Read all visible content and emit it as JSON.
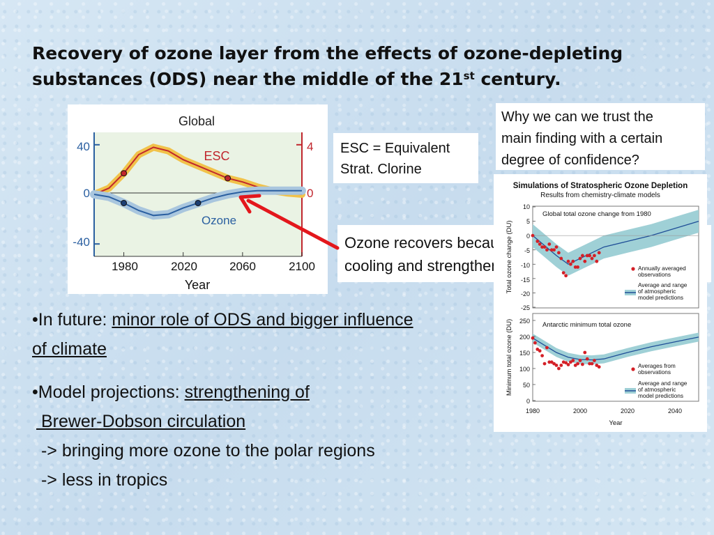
{
  "title": {
    "line1": "Recovery of ozone layer from the effects of ozone-depleting",
    "line2_pre": "substances (ODS) near the middle of the 21",
    "line2_sup": "st",
    "line2_post": " century."
  },
  "left_chart": {
    "panel_title": "Global",
    "y_left_ticks": [
      "40",
      "0",
      "-40"
    ],
    "y_right_ticks": [
      "4",
      "0"
    ],
    "x_ticks": [
      "1980",
      "2020",
      "2060",
      "2100"
    ],
    "x_label": "Year",
    "esc_label": "ESC",
    "ozone_label": "Ozone",
    "colors": {
      "esc": "#c0262d",
      "esc_band": "#f1c24a",
      "ozone": "#2a5fa0",
      "ozone_band": "#a9c6de",
      "bg": "#eaf3e4"
    }
  },
  "chart_data": [
    {
      "type": "line",
      "title": "Global",
      "xlabel": "Year",
      "xlim": [
        1960,
        2100
      ],
      "ylim": [
        -50,
        50
      ],
      "series": [
        {
          "name": "ESC",
          "x": [
            1960,
            1970,
            1980,
            1990,
            2000,
            2010,
            2020,
            2030,
            2040,
            2050,
            2060,
            2070,
            2080,
            2090,
            2100
          ],
          "y": [
            0,
            5,
            17,
            32,
            38,
            35,
            28,
            23,
            18,
            13,
            10,
            6,
            3,
            1,
            0
          ]
        },
        {
          "name": "Ozone",
          "x": [
            1960,
            1970,
            1980,
            1990,
            2000,
            2010,
            2020,
            2030,
            2040,
            2050,
            2060,
            2070,
            2080,
            2090,
            2100
          ],
          "y": [
            0,
            -2,
            -7,
            -13,
            -17,
            -16,
            -11,
            -7,
            -3,
            0,
            2,
            3,
            3,
            3,
            3
          ]
        }
      ]
    },
    {
      "type": "line",
      "title": "Global total ozone change from 1980",
      "xlabel": "Year",
      "ylabel": "Total ozone change (DU)",
      "xlim": [
        1980,
        2050
      ],
      "ylim": [
        -25,
        10
      ],
      "y_ticks": [
        10,
        5,
        0,
        -5,
        -10,
        -15,
        -20,
        -25
      ],
      "series": [
        {
          "name": "Average and range of atmospheric model predictions",
          "x": [
            1980,
            1990,
            1995,
            2000,
            2010,
            2020,
            2030,
            2040,
            2050
          ],
          "y": [
            0,
            -7,
            -10,
            -8,
            -4,
            -2,
            0,
            2.5,
            5
          ]
        },
        {
          "name": "Annually averaged observations",
          "x": [
            1980,
            1982,
            1983,
            1984,
            1985,
            1986,
            1987,
            1988,
            1989,
            1990,
            1991,
            1992,
            1993,
            1994,
            1995,
            1996,
            1997,
            1998,
            1999,
            2000,
            2001,
            2002,
            2003,
            2004,
            2005,
            2006,
            2007,
            2008
          ],
          "y": [
            0,
            -2,
            -3,
            -4,
            -4,
            -5,
            -3,
            -5,
            -5,
            -4,
            -6,
            -8,
            -13,
            -14,
            -9,
            -10,
            -9,
            -11,
            -11,
            -8,
            -7,
            -9,
            -7,
            -7,
            -8,
            -7,
            -9,
            -6
          ]
        }
      ]
    },
    {
      "type": "line",
      "title": "Antarctic minimum total ozone",
      "xlabel": "Year",
      "ylabel": "Minimum total ozone (DU)",
      "xlim": [
        1980,
        2050
      ],
      "ylim": [
        0,
        250
      ],
      "y_ticks": [
        250,
        200,
        150,
        100,
        50,
        0
      ],
      "x_ticks": [
        1980,
        2000,
        2020,
        2040
      ],
      "series": [
        {
          "name": "Average and range of atmospheric model predictions",
          "x": [
            1980,
            1990,
            1995,
            2000,
            2005,
            2010,
            2020,
            2030,
            2040,
            2050
          ],
          "y": [
            195,
            150,
            135,
            128,
            127,
            130,
            150,
            168,
            183,
            198
          ]
        },
        {
          "name": "Averages from observations",
          "x": [
            1980,
            1981,
            1982,
            1983,
            1984,
            1985,
            1986,
            1987,
            1988,
            1989,
            1990,
            1991,
            1992,
            1993,
            1994,
            1995,
            1996,
            1997,
            1998,
            1999,
            2000,
            2001,
            2002,
            2003,
            2004,
            2005,
            2006,
            2007,
            2008
          ],
          "y": [
            195,
            180,
            160,
            155,
            140,
            115,
            165,
            120,
            120,
            115,
            110,
            100,
            110,
            120,
            118,
            112,
            120,
            125,
            110,
            115,
            125,
            113,
            150,
            130,
            115,
            115,
            125,
            110,
            105
          ]
        }
      ]
    }
  ],
  "right_chart": {
    "header_title": "Simulations of Stratospheric Ozone Depletion",
    "header_subtitle": "Results from chemistry-climate models",
    "top_title": "Global total ozone change from 1980",
    "top_ylabel": "Total ozone change (DU)",
    "top_y_ticks": [
      "10",
      "5",
      "0",
      "-5",
      "-10",
      "-15",
      "-20",
      "-25"
    ],
    "top_legend_obs": "Annually averaged observations",
    "top_legend_obs_l1": "Annually averaged",
    "top_legend_obs_l2": "observations",
    "top_legend_model_l1": "Average and range",
    "top_legend_model_l2": "of atmospheric",
    "top_legend_model_l3": "model predictions",
    "bottom_title": "Antarctic minimum total ozone",
    "bottom_ylabel": "Minimum total ozone (DU)",
    "bottom_y_ticks": [
      "250",
      "200",
      "150",
      "100",
      "50",
      "0"
    ],
    "bottom_legend_obs_l1": "Averages from",
    "bottom_legend_obs_l2": "observations",
    "bottom_legend_model_l1": "Average and range",
    "bottom_legend_model_l2": "of atmospheric",
    "bottom_legend_model_l3": "model predictions",
    "x_ticks": [
      "1980",
      "2000",
      "2020",
      "2040"
    ],
    "x_label": "Year"
  },
  "esc_box": {
    "line1": "ESC = Equivalent",
    "line2": "Strat. Clorine"
  },
  "why_box": {
    "line1": "Why we can we trust the",
    "line2": "main finding with a certain",
    "line3": "degree of confidence?"
  },
  "recover_box": {
    "line1": "Ozone recovers because of stratospheric",
    "line2": "cooling and strengthening of BDC"
  },
  "bullets": {
    "b1_prefix": "•In future: ",
    "b1_underlined_1": "minor role of ODS and bigger influence",
    "b1_underlined_2": "of climate",
    "b2_prefix": "•Model projections: ",
    "b2_underlined_1": "strengthening of",
    "b2_underlined_2": " Brewer-Dobson circulation",
    "b2_line3": " -> bringing more ozone to the polar regions",
    "b2_line4": " -> less in tropics"
  },
  "colors": {
    "arrow": "#e3171c",
    "observation_dot": "#d42027",
    "model_line": "#1f4e97",
    "model_band": "#9fd0d6"
  }
}
